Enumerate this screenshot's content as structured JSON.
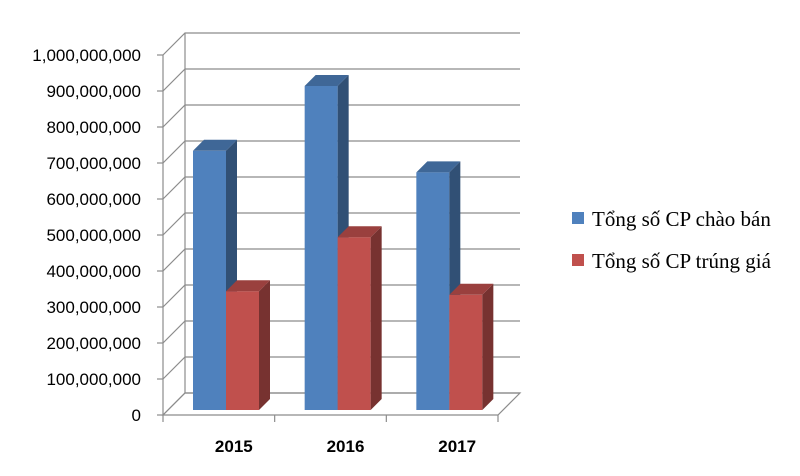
{
  "chart_data": {
    "type": "bar",
    "categories": [
      "2015",
      "2016",
      "2017"
    ],
    "series": [
      {
        "name": "Tổng số CP chào bán",
        "values": [
          720000000,
          900000000,
          660000000
        ],
        "color": "#4f81bd"
      },
      {
        "name": "Tổng số CP trúng giá",
        "values": [
          330000000,
          480000000,
          320000000
        ],
        "color": "#c0504d"
      }
    ],
    "y_ticks": [
      "0",
      "100,000,000",
      "200,000,000",
      "300,000,000",
      "400,000,000",
      "500,000,000",
      "600,000,000",
      "700,000,000",
      "800,000,000",
      "900,000,000",
      "1,000,000,000"
    ],
    "ylim": [
      0,
      1000000000
    ],
    "grid": true,
    "legend_position": "right",
    "style": "3d-clustered-column"
  }
}
